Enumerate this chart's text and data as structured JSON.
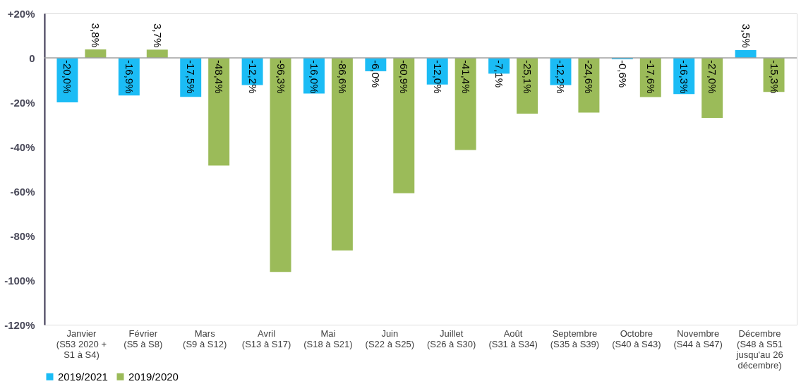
{
  "chart_data": {
    "type": "bar",
    "categories": [
      "Janvier\n(S53 2020 +\nS1 à S4)",
      "Février\n(S5 à S8)",
      "Mars\n(S9 à S12)",
      "Avril\n(S13 à S17)",
      "Mai\n(S18 à S21)",
      "Juin\n(S22 à S25)",
      "Juillet\n(S26 à S30)",
      "Août\n(S31 à S34)",
      "Septembre\n(S35 à S39)",
      "Octobre\n(S40 à S43)",
      "Novembre\n(S44 à S47)",
      "Décembre\n(S48 à S51\njusqu'au 26\ndécembre)"
    ],
    "series": [
      {
        "name": "2019/2021",
        "color": "#1bbcf5",
        "values": [
          -20.0,
          -16.9,
          -17.5,
          -12.2,
          -16.0,
          -6.0,
          -12.0,
          -7.1,
          -12.2,
          -0.6,
          -16.3,
          3.5
        ],
        "value_labels": [
          "-20,0%",
          "-16,9%",
          "-17,5%",
          "-12,2%",
          "-16,0%",
          "-6,0%",
          "-12,0%",
          "-7,1%",
          "-12,2%",
          "-0,6%",
          "-16,3%",
          "3,5%"
        ]
      },
      {
        "name": "2019/2020",
        "color": "#9bbb59",
        "values": [
          3.8,
          3.7,
          -48.4,
          -96.3,
          -86.6,
          -60.9,
          -41.4,
          -25.1,
          -24.6,
          -17.6,
          -27.0,
          -15.3
        ],
        "value_labels": [
          "3,8%",
          "3,7%",
          "-48,4%",
          "-96,3%",
          "-86,6%",
          "-60,9%",
          "-41,4%",
          "-25,1%",
          "-24,6%",
          "-17,6%",
          "-27,0%",
          "-15,3%"
        ]
      }
    ],
    "ylim": [
      -120,
      20
    ],
    "yticks": [
      {
        "value": 20,
        "label": "+20%"
      },
      {
        "value": 0,
        "label": "0"
      },
      {
        "value": -20,
        "label": "-20%"
      },
      {
        "value": -40,
        "label": "-40%"
      },
      {
        "value": -60,
        "label": "-60%"
      },
      {
        "value": -80,
        "label": "-80%"
      },
      {
        "value": -100,
        "label": "-100%"
      },
      {
        "value": -120,
        "label": "-120%"
      }
    ],
    "ref_lines": [
      {
        "axis": "y",
        "value": 0,
        "color": "#a0a0a0"
      }
    ],
    "grid": false,
    "legend": "bottom"
  }
}
